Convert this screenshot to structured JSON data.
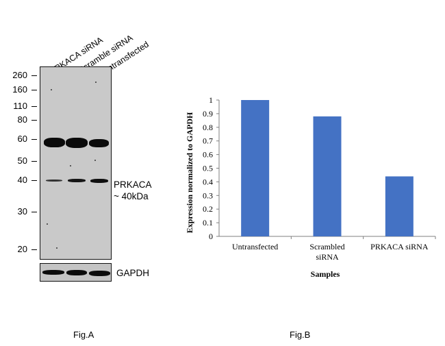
{
  "figA": {
    "lanes": [
      "PRKACA siRNA",
      "Scramble siRNA",
      "Untransfected"
    ],
    "markers": [
      "260",
      "160",
      "110",
      "80",
      "60",
      "50",
      "40",
      "30",
      "20"
    ],
    "band_label_1": "PRKACA",
    "band_label_2": "~ 40kDa",
    "loading_label": "GAPDH",
    "caption": "Fig.A"
  },
  "figB": {
    "caption": "Fig.B"
  },
  "chart_data": {
    "type": "bar",
    "categories": [
      "Untransfected",
      "Scrambled siRNA",
      "PRKACA siRNA"
    ],
    "category_lines": [
      [
        "Untransfected"
      ],
      [
        "Scrambled",
        "siRNA"
      ],
      [
        "PRKACA siRNA"
      ]
    ],
    "values": [
      1.0,
      0.88,
      0.44
    ],
    "xlabel": "Samples",
    "ylabel": "Expression normalized to GAPDH",
    "ylim": [
      0,
      1
    ],
    "yticks": [
      "0",
      "0.1",
      "0.2",
      "0.3",
      "0.4",
      "0.5",
      "0.6",
      "0.7",
      "0.8",
      "0.9",
      "1"
    ],
    "bar_color": "#4472c4",
    "grid": false
  }
}
